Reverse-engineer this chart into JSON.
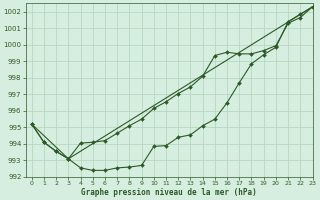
{
  "xlabel": "Graphe pression niveau de la mer (hPa)",
  "ylim": [
    992,
    1002.5
  ],
  "xlim": [
    -0.5,
    23
  ],
  "yticks": [
    992,
    993,
    994,
    995,
    996,
    997,
    998,
    999,
    1000,
    1001,
    1002
  ],
  "xticks": [
    0,
    1,
    2,
    3,
    4,
    5,
    6,
    7,
    8,
    9,
    10,
    11,
    12,
    13,
    14,
    15,
    16,
    17,
    18,
    19,
    20,
    21,
    22,
    23
  ],
  "background_color": "#d6eee0",
  "grid_color": "#b0d4bc",
  "line_color": "#2d5a27",
  "line1_y": [
    995.2,
    994.1,
    993.55,
    993.1,
    992.55,
    992.4,
    992.4,
    992.55,
    992.6,
    992.7,
    993.85,
    993.9,
    994.4,
    994.55,
    995.1,
    995.5,
    996.5,
    997.7,
    998.85,
    999.4,
    999.85,
    1001.4,
    1001.85,
    1002.3
  ],
  "line2_y": [
    995.2,
    994.1,
    993.55,
    993.1,
    994.05,
    994.1,
    994.2,
    994.65,
    995.1,
    995.5,
    996.15,
    996.55,
    997.05,
    997.45,
    998.1,
    999.35,
    999.55,
    999.45,
    999.45,
    999.65,
    999.95,
    1001.3,
    1001.65,
    1002.3
  ],
  "line3_x": [
    0,
    3,
    23
  ],
  "line3_y": [
    995.2,
    993.1,
    1002.3
  ],
  "marker": "D",
  "marker_size": 2.0,
  "line_width": 0.8
}
